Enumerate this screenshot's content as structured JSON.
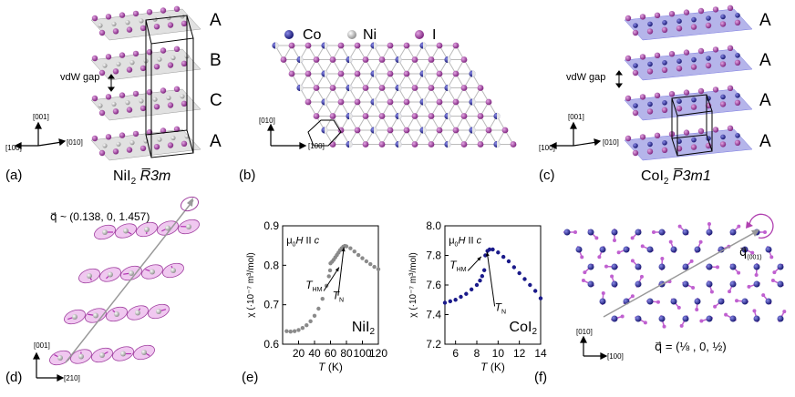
{
  "panel_a": {
    "label": "(a)",
    "stacking": [
      "A",
      "B",
      "C",
      "A"
    ],
    "gap": "vdW gap",
    "ax_001": "[001]",
    "ax_100": "[100]",
    "ax_010": "[010]",
    "compound_prefix": "NiI",
    "compound_sub": "2",
    "space_group": "R̅3m"
  },
  "panel_b": {
    "label": "(b)",
    "legend": [
      "Co",
      "Ni",
      "I"
    ],
    "ax_010": "[010]",
    "ax_100": "[100]"
  },
  "panel_c": {
    "label": "(c)",
    "stacking": [
      "A",
      "A",
      "A",
      "A"
    ],
    "gap": "vdW gap",
    "ax_001": "[001]",
    "ax_100": "[100]",
    "ax_010": "[010]",
    "compound_prefix": "CoI",
    "compound_sub": "2",
    "space_group": "P̅3m1"
  },
  "panel_d": {
    "label": "(d)",
    "qvec": "q⃗ ~ (0.138, 0, 1.457)",
    "ax_001": "[001]",
    "ax_210": "[210]"
  },
  "panel_e": {
    "label": "(e)",
    "ylabel": "χ (·10⁻⁷ m³/mol)",
    "xlabel": "T (K)",
    "field": "μ₀H II c",
    "t_hm": "THM",
    "t_n": "TN"
  },
  "panel_f": {
    "label": "(f)",
    "q_label": "q⃗",
    "q_sub": "(001)",
    "q_eq": "q⃗ = (⅛ , 0, ½)",
    "ax_010": "[010]",
    "ax_100": "[100]"
  },
  "chart_data": [
    {
      "type": "scatter",
      "title": "NiI2",
      "xlabel": "T (K)",
      "ylabel": "χ (·10⁻⁷ m³/mol)",
      "xlim": [
        0,
        120
      ],
      "ylim": [
        0.6,
        0.9
      ],
      "xticks": [
        20,
        40,
        60,
        80,
        100,
        120
      ],
      "yticks": [
        0.6,
        0.7,
        0.8,
        0.9
      ],
      "annotations": [
        "μ0H II c",
        "THM",
        "TN"
      ],
      "color": "#8a8a8a",
      "series": [
        {
          "x": [
            5,
            10,
            15,
            20,
            25,
            30,
            35,
            40,
            45,
            50,
            55,
            58,
            59.5
          ],
          "y": [
            0.633,
            0.632,
            0.633,
            0.636,
            0.641,
            0.648,
            0.658,
            0.672,
            0.69,
            0.715,
            0.748,
            0.772,
            0.787
          ]
        },
        {
          "x": [
            60,
            62,
            64,
            66,
            68,
            70,
            72,
            74,
            76,
            78,
            80,
            85,
            90,
            95,
            100,
            105,
            110,
            115,
            120
          ],
          "y": [
            0.805,
            0.809,
            0.814,
            0.82,
            0.826,
            0.832,
            0.838,
            0.843,
            0.847,
            0.849,
            0.848,
            0.843,
            0.835,
            0.826,
            0.818,
            0.81,
            0.803,
            0.796,
            0.79
          ]
        }
      ]
    },
    {
      "type": "scatter",
      "title": "CoI2",
      "xlabel": "T (K)",
      "ylabel": "χ (·10⁻⁷ m³/mol)",
      "xlim": [
        5,
        14
      ],
      "ylim": [
        7.2,
        8.0
      ],
      "xticks": [
        6,
        8,
        10,
        12,
        14
      ],
      "yticks": [
        7.2,
        7.4,
        7.6,
        7.8,
        8.0
      ],
      "annotations": [
        "μ0H II c",
        "THM",
        "TN"
      ],
      "color": "#1a1a8a",
      "series": [
        {
          "x": [
            5,
            5.5,
            6,
            6.5,
            7,
            7.5,
            8,
            8.3,
            8.5,
            8.7
          ],
          "y": [
            7.48,
            7.49,
            7.5,
            7.52,
            7.54,
            7.57,
            7.6,
            7.63,
            7.66,
            7.7
          ]
        },
        {
          "x": [
            8.8,
            9.0,
            9.2,
            9.5,
            10,
            10.5,
            11,
            11.5,
            12,
            12.5,
            13,
            13.5,
            14
          ],
          "y": [
            7.8,
            7.83,
            7.84,
            7.84,
            7.82,
            7.79,
            7.76,
            7.72,
            7.68,
            7.64,
            7.6,
            7.56,
            7.51
          ]
        }
      ]
    }
  ]
}
